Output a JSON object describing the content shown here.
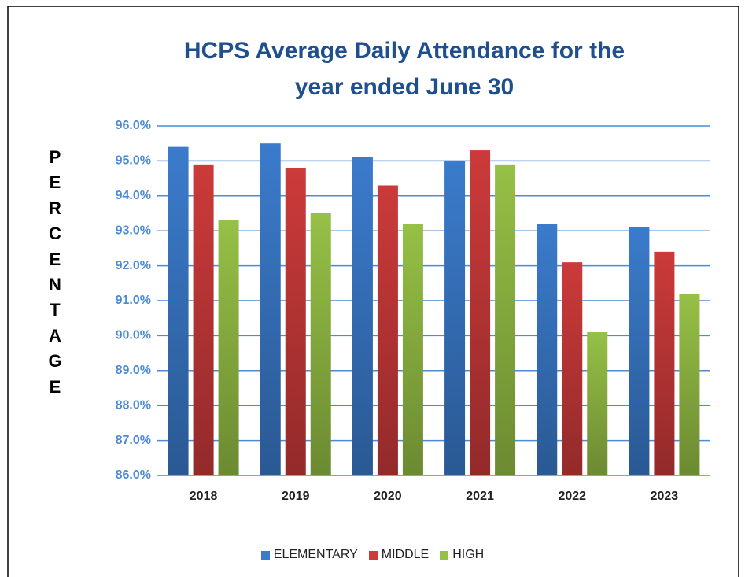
{
  "chart_data": {
    "type": "bar",
    "title": [
      "HCPS Average Daily Attendance for the",
      "year ended June 30"
    ],
    "y_label": "PERCENTAGE",
    "categories": [
      "2018",
      "2019",
      "2020",
      "2021",
      "2022",
      "2023"
    ],
    "series": [
      {
        "name": "ELEMENTARY",
        "color": "#3b7bcc",
        "values": [
          95.4,
          95.5,
          95.1,
          95.0,
          93.2,
          93.1
        ]
      },
      {
        "name": "MIDDLE",
        "color": "#cc3a3a",
        "values": [
          94.9,
          94.8,
          94.3,
          95.3,
          92.1,
          92.4
        ]
      },
      {
        "name": "HIGH",
        "color": "#96c046",
        "values": [
          93.3,
          93.5,
          93.2,
          94.9,
          90.1,
          91.2
        ]
      }
    ],
    "ylim": [
      86,
      96
    ],
    "yticks": [
      {
        "value": 86,
        "label": "86.0%"
      },
      {
        "value": 87,
        "label": "87.0%"
      },
      {
        "value": 88,
        "label": "88.0%"
      },
      {
        "value": 89,
        "label": "89.0%"
      },
      {
        "value": 90,
        "label": "90.0%"
      },
      {
        "value": 91,
        "label": "91.0%"
      },
      {
        "value": 92,
        "label": "92.0%"
      },
      {
        "value": 93,
        "label": "93.0%"
      },
      {
        "value": 94,
        "label": "94.0%"
      },
      {
        "value": 95,
        "label": "95.0%"
      },
      {
        "value": 96,
        "label": "96.0%"
      }
    ],
    "grid": true,
    "legend": "bottom"
  }
}
